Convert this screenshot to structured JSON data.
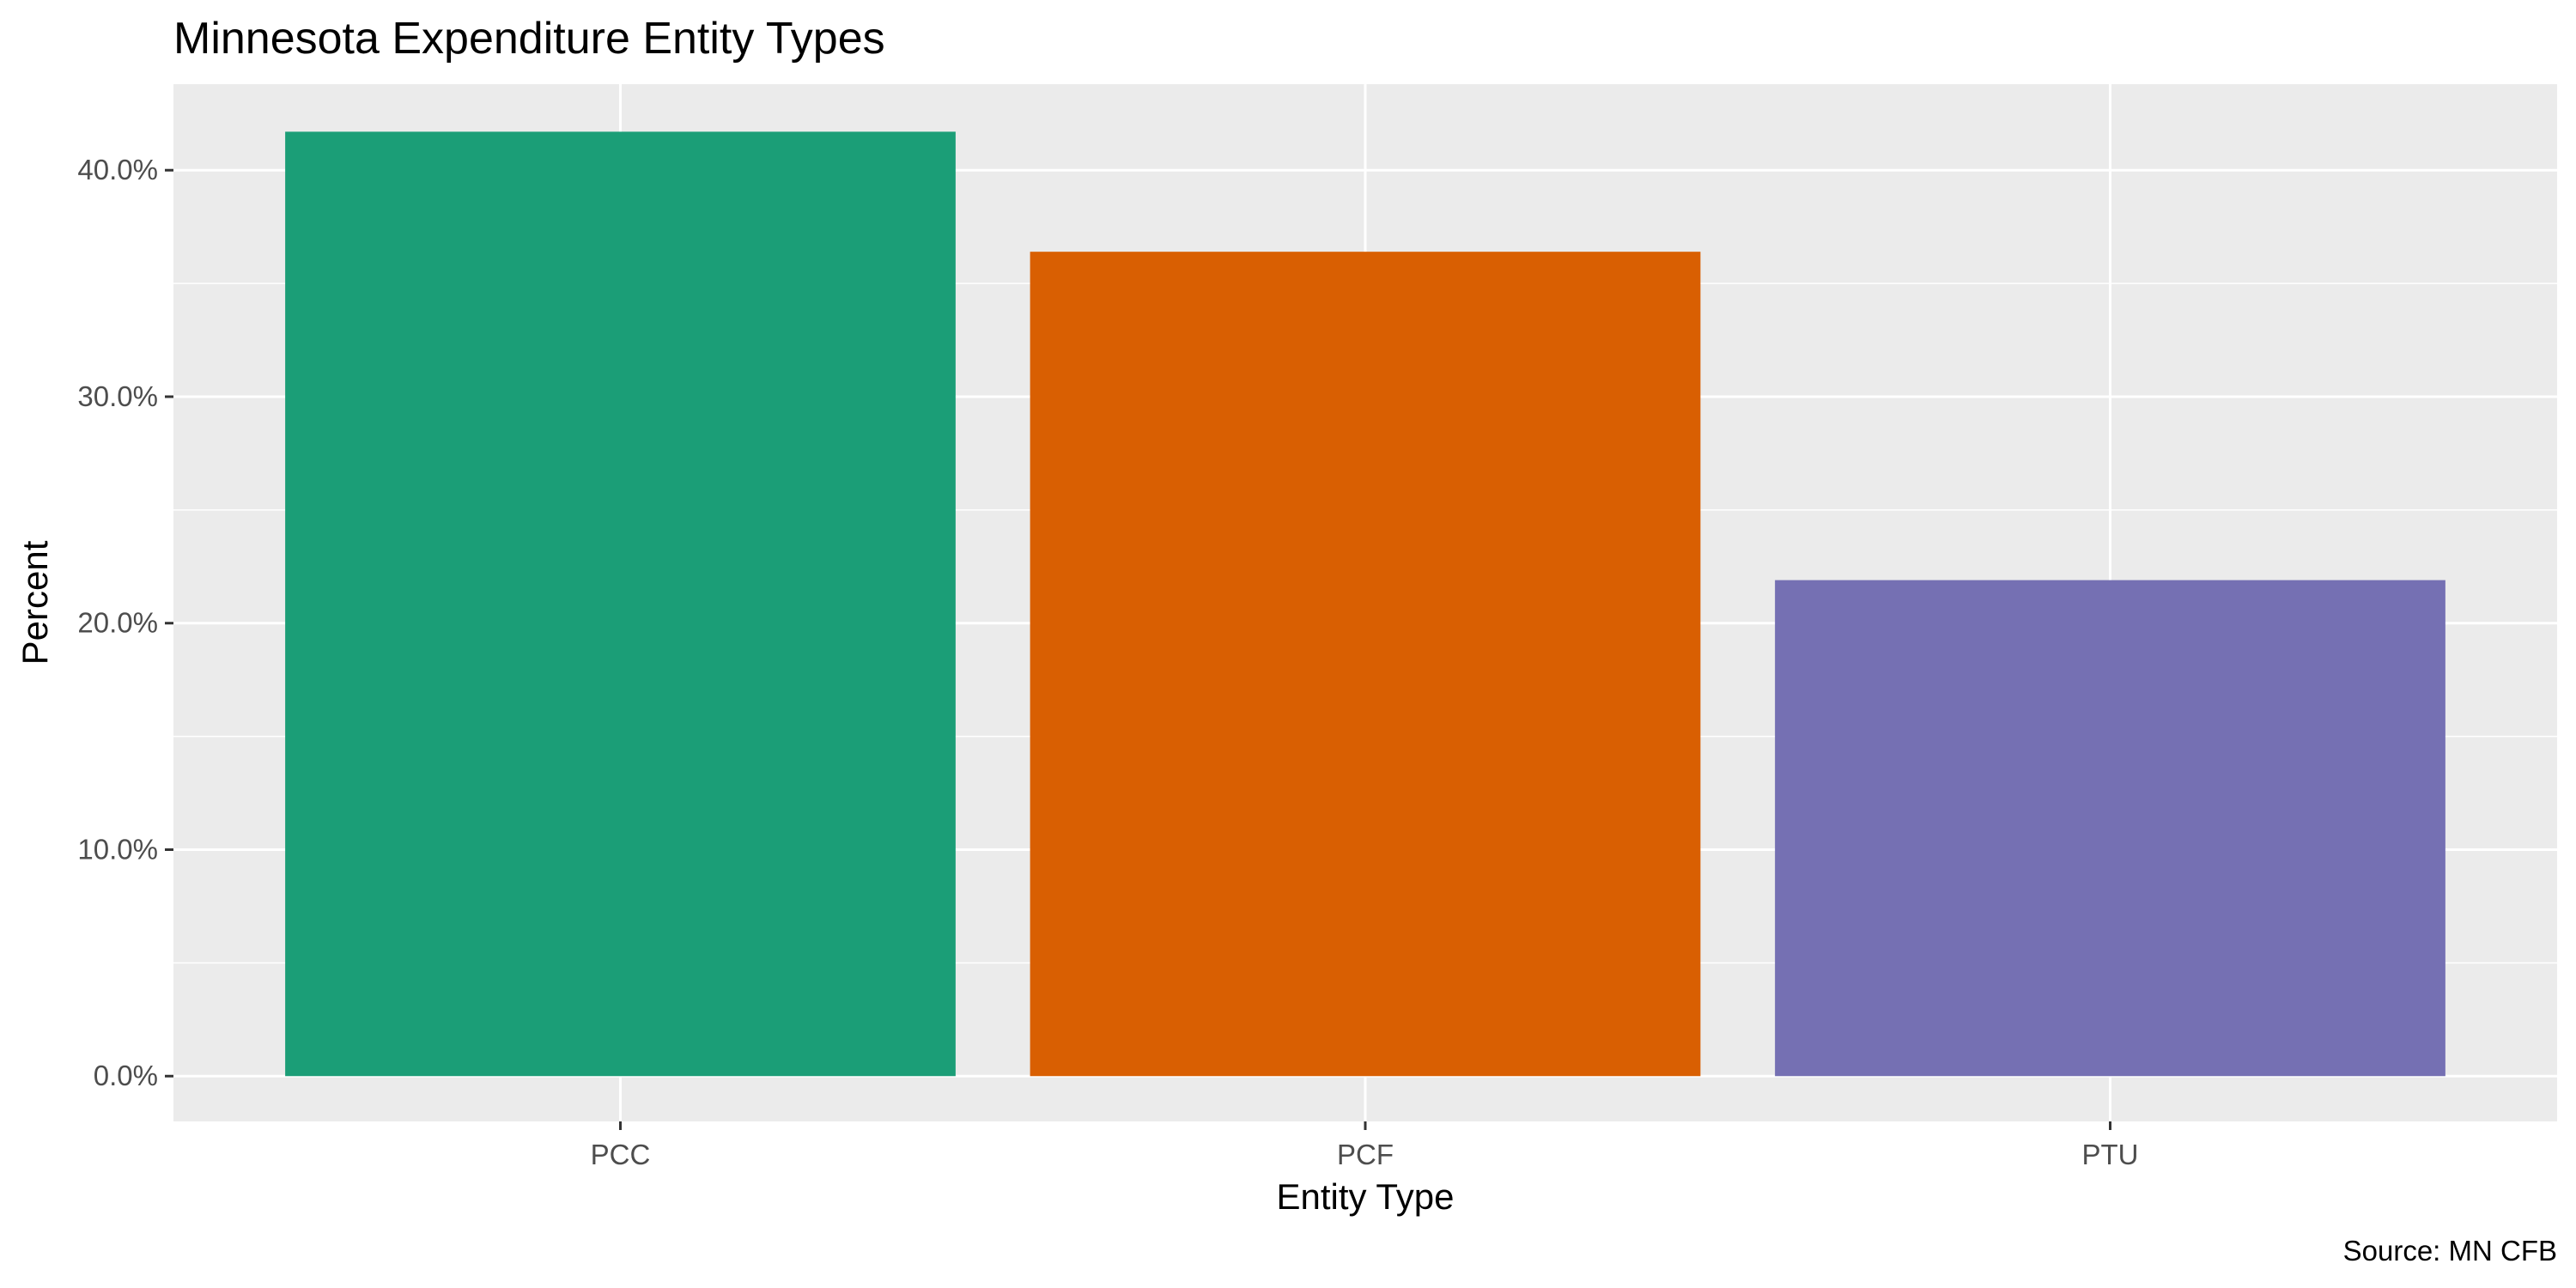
{
  "chart_data": {
    "type": "bar",
    "title": "Minnesota Expenditure Entity Types",
    "xlabel": "Entity Type",
    "ylabel": "Percent",
    "caption": "Source: MN CFB",
    "categories": [
      "PCC",
      "PCF",
      "PTU"
    ],
    "values": [
      41.7,
      36.4,
      21.9
    ],
    "colors": [
      "#1b9e77",
      "#d95f02",
      "#7570b3"
    ],
    "ylim": [
      -2.0,
      43.8
    ],
    "yticks": [
      0,
      10,
      20,
      30,
      40
    ],
    "ytick_labels": [
      "0.0%",
      "10.0%",
      "20.0%",
      "30.0%",
      "40.0%"
    ],
    "grid": true,
    "legend": "none",
    "panel_background": "#ebebeb"
  }
}
